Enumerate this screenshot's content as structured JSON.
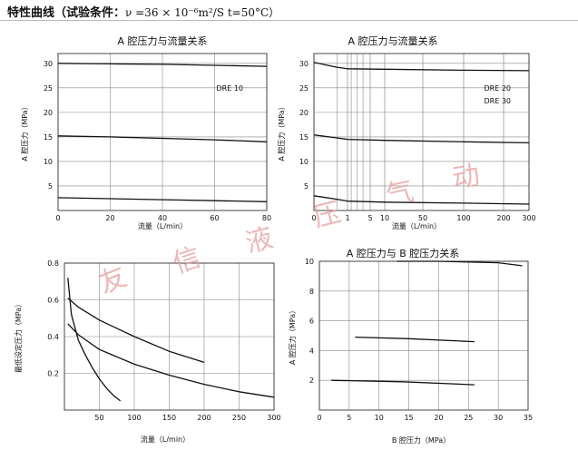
{
  "header": {
    "title": "特性曲线（试验条件：",
    "conditions": "ν =36 × 10⁻⁶m²/S  t=50°C）"
  },
  "watermark": [
    "友",
    "信",
    "液",
    "压",
    "气",
    "动"
  ],
  "colors": {
    "line": "#111111",
    "grid": "#888888",
    "watermark": "#e8a0a0"
  },
  "chart_data": [
    {
      "type": "line",
      "title": "A 腔压力与流量关系",
      "xlabel": "流量（L/min）",
      "ylabel": "A 腔压力（MPa）",
      "xlim": [
        0,
        80
      ],
      "ylim": [
        0,
        32
      ],
      "x_ticks": [
        0,
        20,
        40,
        60,
        80
      ],
      "y_ticks": [
        5,
        10,
        15,
        20,
        25,
        30
      ],
      "annotations": [
        "DRE 10"
      ],
      "series": [
        {
          "x": [
            0,
            20,
            40,
            60,
            80
          ],
          "values": [
            30,
            29.9,
            29.8,
            29.6,
            29.4
          ]
        },
        {
          "x": [
            0,
            20,
            40,
            60,
            80
          ],
          "values": [
            15.2,
            15.0,
            14.7,
            14.4,
            14.0
          ]
        },
        {
          "x": [
            0,
            20,
            40,
            60,
            80
          ],
          "values": [
            2.6,
            2.4,
            2.2,
            2.0,
            1.8
          ]
        }
      ]
    },
    {
      "type": "line",
      "title": "A 腔压力与流量关系",
      "xlabel": "流量（L/min）",
      "ylabel": "A 腔压力（MPa）",
      "xscale": "log",
      "xlim": [
        0.2,
        300
      ],
      "ylim": [
        0,
        32
      ],
      "x_ticks": [
        "0",
        "1",
        "5",
        "10",
        "50",
        "100",
        "200",
        "300"
      ],
      "y_ticks": [
        5,
        10,
        15,
        20,
        25,
        30
      ],
      "annotations": [
        "DRE 20",
        "DRE 30"
      ],
      "series": [
        {
          "x": [
            0.2,
            0.6,
            1,
            10,
            100,
            300
          ],
          "values": [
            30.2,
            29.2,
            28.9,
            28.8,
            28.6,
            28.5
          ]
        },
        {
          "x": [
            0.2,
            0.6,
            1,
            10,
            100,
            300
          ],
          "values": [
            15.4,
            14.8,
            14.5,
            14.3,
            14.0,
            13.8
          ]
        },
        {
          "x": [
            0.2,
            0.6,
            1,
            10,
            100,
            300
          ],
          "values": [
            3.0,
            2.3,
            1.9,
            1.7,
            1.5,
            1.3
          ]
        }
      ]
    },
    {
      "type": "line",
      "title": "",
      "xlabel": "流量（L/min）",
      "ylabel": "最低设定压力（MPa）",
      "xlim": [
        0,
        300
      ],
      "ylim": [
        0,
        0.8
      ],
      "x_ticks": [
        50,
        100,
        150,
        200,
        250,
        300
      ],
      "y_ticks": [
        0.2,
        0.4,
        0.6,
        0.8
      ],
      "series": [
        {
          "x": [
            5,
            10,
            20,
            30,
            40,
            50,
            60,
            70,
            80
          ],
          "values": [
            0.72,
            0.52,
            0.38,
            0.3,
            0.23,
            0.17,
            0.12,
            0.08,
            0.05
          ]
        },
        {
          "x": [
            5,
            20,
            50,
            100,
            150,
            200
          ],
          "values": [
            0.61,
            0.56,
            0.49,
            0.4,
            0.32,
            0.26
          ]
        },
        {
          "x": [
            5,
            20,
            50,
            100,
            150,
            200,
            250,
            300
          ],
          "values": [
            0.47,
            0.41,
            0.33,
            0.25,
            0.19,
            0.14,
            0.1,
            0.07
          ]
        }
      ]
    },
    {
      "type": "line",
      "title": "A 腔压力与 B 腔压力关系",
      "xlabel": "B 腔压力（MPa）",
      "ylabel": "A 腔压力（MPa）",
      "xlim": [
        0,
        35
      ],
      "ylim": [
        0,
        10
      ],
      "x_ticks": [
        0,
        5,
        10,
        15,
        20,
        25,
        30,
        35
      ],
      "y_ticks": [
        2,
        4,
        6,
        8,
        10
      ],
      "series": [
        {
          "x": [
            13,
            20,
            30,
            34
          ],
          "values": [
            10,
            10,
            9.9,
            9.7
          ]
        },
        {
          "x": [
            6,
            15,
            26
          ],
          "values": [
            4.9,
            4.8,
            4.6
          ]
        },
        {
          "x": [
            2,
            14,
            26
          ],
          "values": [
            2.0,
            1.9,
            1.7
          ]
        }
      ]
    }
  ]
}
